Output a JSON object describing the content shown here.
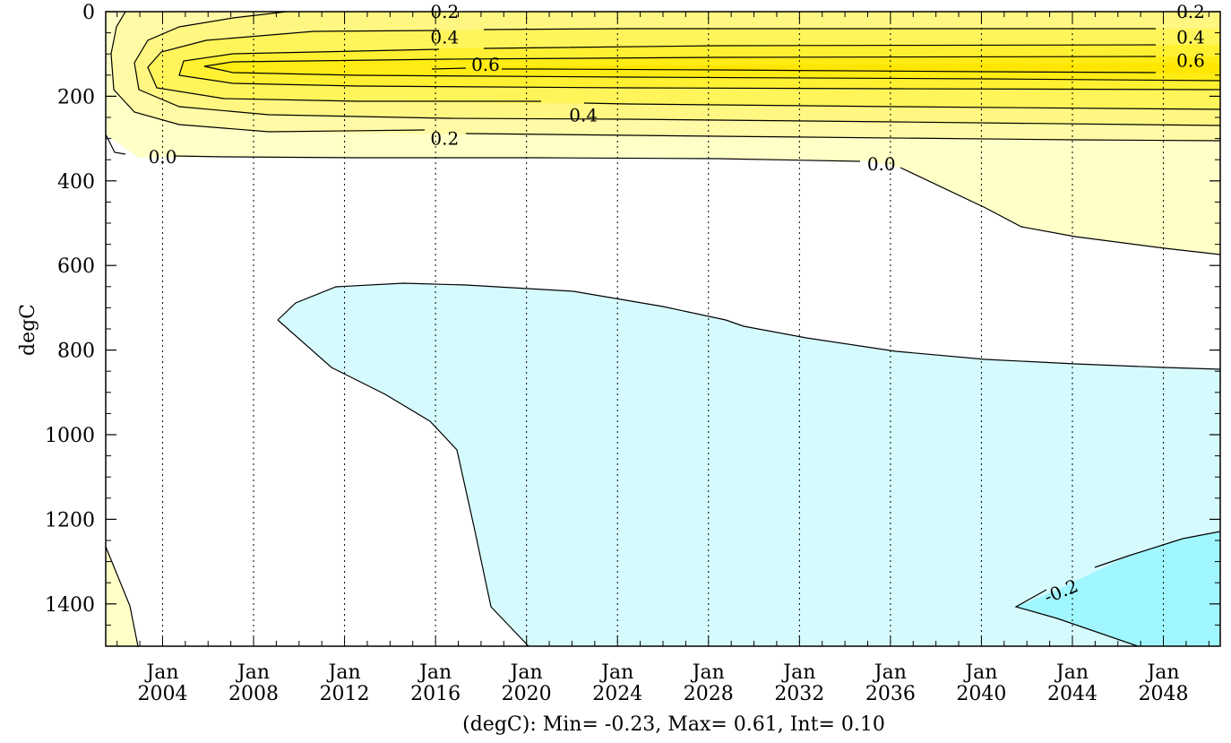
{
  "chart_data": {
    "type": "contour",
    "ylabel": "degC",
    "footer": "(degC): Min= -0.23, Max= 0.61, Int= 0.10",
    "x_ticks": [
      {
        "line1": "Jan",
        "line2": "2004"
      },
      {
        "line1": "Jan",
        "line2": "2008"
      },
      {
        "line1": "Jan",
        "line2": "2012"
      },
      {
        "line1": "Jan",
        "line2": "2016"
      },
      {
        "line1": "Jan",
        "line2": "2020"
      },
      {
        "line1": "Jan",
        "line2": "2024"
      },
      {
        "line1": "Jan",
        "line2": "2028"
      },
      {
        "line1": "Jan",
        "line2": "2032"
      },
      {
        "line1": "Jan",
        "line2": "2036"
      },
      {
        "line1": "Jan",
        "line2": "2040"
      },
      {
        "line1": "Jan",
        "line2": "2044"
      },
      {
        "line1": "Jan",
        "line2": "2048"
      }
    ],
    "x_tick_years": [
      2004,
      2008,
      2012,
      2016,
      2020,
      2024,
      2028,
      2032,
      2036,
      2040,
      2044,
      2048
    ],
    "xlim": [
      2001.5,
      2050.5
    ],
    "y_ticks": [
      "0",
      "200",
      "400",
      "600",
      "800",
      "1000",
      "1200",
      "1400"
    ],
    "y_tick_values": [
      0,
      200,
      400,
      600,
      800,
      1000,
      1200,
      1400
    ],
    "ylim": [
      0,
      1500
    ],
    "y_inverted": true,
    "min": -0.23,
    "max": 0.61,
    "interval": 0.1,
    "colors": {
      "level_0_1": "#ffffc8",
      "level_0_1_0_2": "#fffaa5",
      "level_0_2_0_3": "#fff782",
      "level_0_3_0_4": "#fff55a",
      "level_0_4_0_5": "#fff032",
      "level_0_5_0_6": "#ffec14",
      "level_0_6": "#ffe600",
      "neg_0_1": "#d6fbff",
      "neg_0_2": "#a1f7ff"
    },
    "contour_labels": [
      {
        "text": "0.2",
        "year": 2016.4,
        "depth": 0
      },
      {
        "text": "0.2",
        "year": 2049.2,
        "depth": 0
      },
      {
        "text": "0.4",
        "year": 2016.4,
        "depth": 60
      },
      {
        "text": "0.4",
        "year": 2049.2,
        "depth": 60
      },
      {
        "text": "0.6",
        "year": 2018.2,
        "depth": 125
      },
      {
        "text": "0.6",
        "year": 2049.2,
        "depth": 115
      },
      {
        "text": "0.4",
        "year": 2022.5,
        "depth": 245
      },
      {
        "text": "0.2",
        "year": 2016.4,
        "depth": 300
      },
      {
        "text": "0.0",
        "year": 2004.0,
        "depth": 343
      },
      {
        "text": "0.0",
        "year": 2035.6,
        "depth": 360
      },
      {
        "text": "-0.2",
        "year": 2043.5,
        "depth": 1370
      }
    ]
  }
}
